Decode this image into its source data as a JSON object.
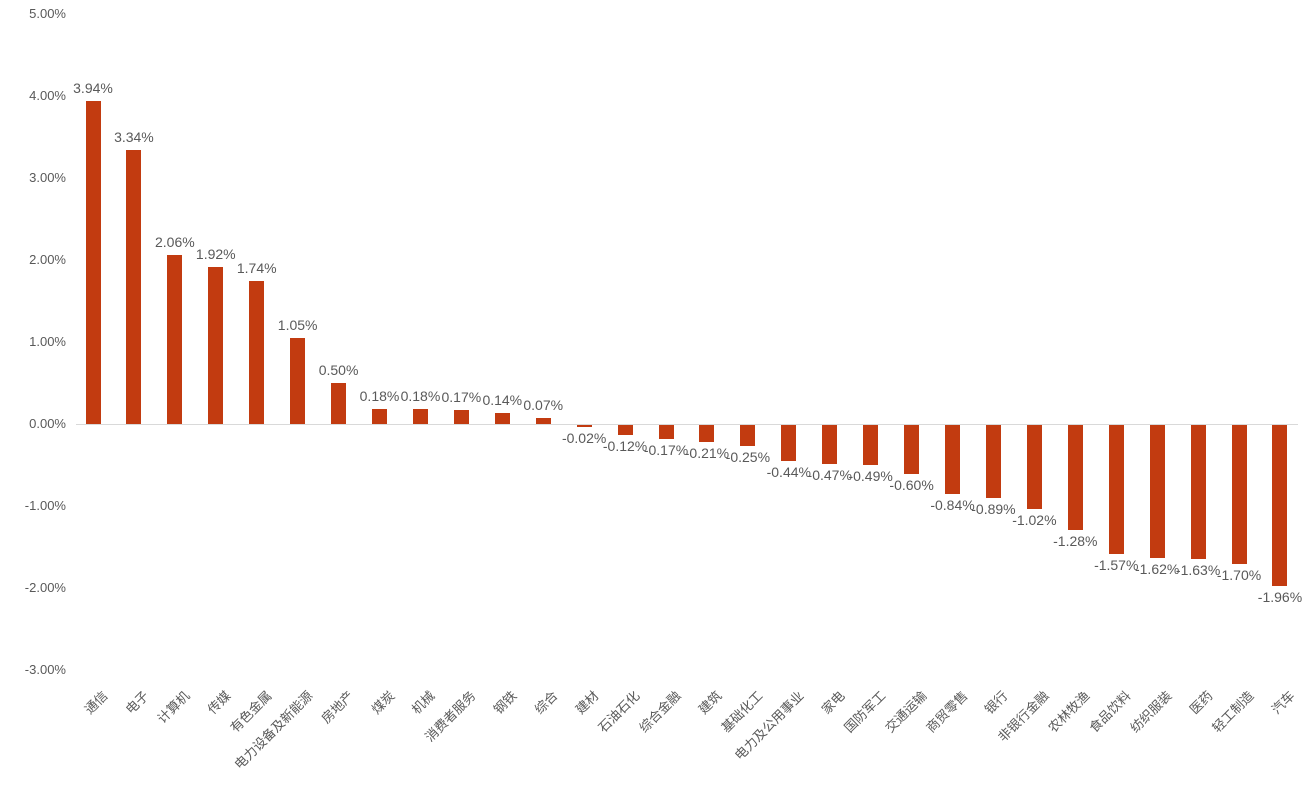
{
  "chart_data": {
    "type": "bar",
    "title": "",
    "xlabel": "",
    "ylabel": "",
    "ylim": [
      -3,
      5
    ],
    "grid": false,
    "legend": "none",
    "bar_color": "#c23b10",
    "label_color": "#595959",
    "axis_line_color": "#d9d9d9",
    "yticks": [
      {
        "value": 5,
        "label": "5.00%"
      },
      {
        "value": 4,
        "label": "4.00%"
      },
      {
        "value": 3,
        "label": "3.00%"
      },
      {
        "value": 2,
        "label": "2.00%"
      },
      {
        "value": 1,
        "label": "1.00%"
      },
      {
        "value": 0,
        "label": "0.00%"
      },
      {
        "value": -1,
        "label": "-1.00%"
      },
      {
        "value": -2,
        "label": "-2.00%"
      },
      {
        "value": -3,
        "label": "-3.00%"
      }
    ],
    "categories": [
      "通信",
      "电子",
      "计算机",
      "传媒",
      "有色金属",
      "电力设备及新能源",
      "房地产",
      "煤炭",
      "机械",
      "消费者服务",
      "钢铁",
      "综合",
      "建材",
      "石油石化",
      "综合金融",
      "建筑",
      "基础化工",
      "电力及公用事业",
      "家电",
      "国防军工",
      "交通运输",
      "商贸零售",
      "银行",
      "非银行金融",
      "农林牧渔",
      "食品饮料",
      "纺织服装",
      "医药",
      "轻工制造",
      "汽车"
    ],
    "values": [
      3.94,
      3.34,
      2.06,
      1.92,
      1.74,
      1.05,
      0.5,
      0.18,
      0.18,
      0.17,
      0.14,
      0.07,
      -0.02,
      -0.12,
      -0.17,
      -0.21,
      -0.25,
      -0.44,
      -0.47,
      -0.49,
      -0.6,
      -0.84,
      -0.89,
      -1.02,
      -1.28,
      -1.57,
      -1.62,
      -1.63,
      -1.7,
      -1.96
    ],
    "value_labels": [
      "3.94%",
      "3.34%",
      "2.06%",
      "1.92%",
      "1.74%",
      "1.05%",
      "0.50%",
      "0.18%",
      "0.18%",
      "0.17%",
      "0.14%",
      "0.07%",
      "-0.02%",
      "-0.12%",
      "-0.17%",
      "-0.21%",
      "-0.25%",
      "-0.44%",
      "-0.47%",
      "-0.49%",
      "-0.60%",
      "-0.84%",
      "-0.89%",
      "-1.02%",
      "-1.28%",
      "-1.57%",
      "-1.62%",
      "-1.63%",
      "-1.70%",
      "-1.96%"
    ]
  }
}
